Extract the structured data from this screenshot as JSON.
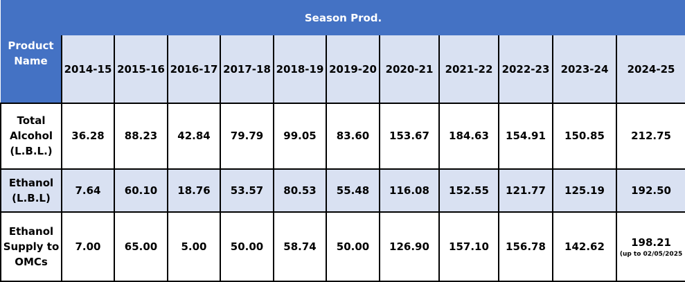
{
  "title": "Season Prod.",
  "product_header": "Product Name",
  "years": [
    "2014-15",
    "2015-16",
    "2016-17",
    "2017-18",
    "2018-19",
    "2019-20",
    "2020-21",
    "2021-22",
    "2022-23",
    "2023-24",
    "2024-25"
  ],
  "rows": [
    {
      "name": "Total Alcohol (L.B.L.)",
      "values": [
        "36.28",
        "88.23",
        "42.84",
        "79.79",
        "99.05",
        "83.60",
        "153.67",
        "184.63",
        "154.91",
        "150.85",
        "212.75"
      ]
    },
    {
      "name": "Ethanol (L.B.L)",
      "values": [
        "7.64",
        "60.10",
        "18.76",
        "53.57",
        "80.53",
        "55.48",
        "116.08",
        "152.55",
        "121.77",
        "125.19",
        "192.50"
      ]
    },
    {
      "name": "Ethanol Supply to OMCs",
      "values": [
        "7.00",
        "65.00",
        "5.00",
        "50.00",
        "58.74",
        "50.00",
        "126.90",
        "157.10",
        "156.78",
        "142.62",
        "198.21"
      ],
      "note": "(up to 02/05/2025"
    }
  ],
  "colors": {
    "header_blue": "#4472C4",
    "light_blue": "#D9E1F2"
  }
}
